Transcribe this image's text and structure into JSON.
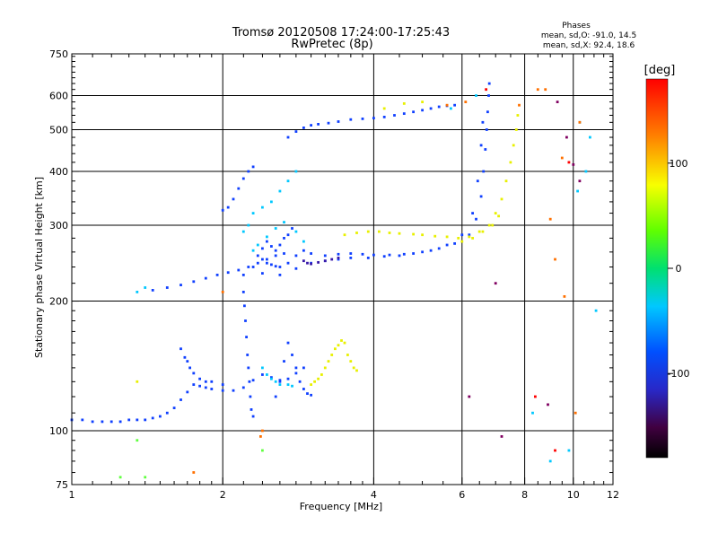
{
  "chart_data": {
    "type": "scatter",
    "title": "Tromsø 20120508 17:24:00-17:25:43",
    "subtitle": "RwPretec (8p)",
    "xlabel": "Frequency [MHz]",
    "ylabel": "Stationary phase Virtual Height [km]",
    "x_scale": "log",
    "y_scale": "log",
    "xlim": [
      1,
      12
    ],
    "ylim": [
      75,
      750
    ],
    "x_ticks": [
      "1",
      "2",
      "4",
      "6",
      "8",
      "10",
      "12"
    ],
    "y_ticks": [
      "75",
      "100",
      "200",
      "300",
      "400",
      "500",
      "600",
      "750"
    ],
    "grid": true,
    "phase_box": {
      "title": "Phases",
      "line1": "mean, sd,O: -91.0, 14.5",
      "line2": "mean, sd,X:  92.4, 18.6"
    },
    "colorbar": {
      "label": "[deg]",
      "range": [
        -180,
        180
      ],
      "ticks": [
        "100",
        "0",
        "-100"
      ],
      "colormap": "rainbow"
    },
    "series": [
      {
        "color_deg": -100,
        "color": "#1040ff",
        "points": [
          [
            1.0,
            106
          ],
          [
            1.05,
            106
          ],
          [
            1.1,
            105
          ],
          [
            1.15,
            105
          ],
          [
            1.2,
            105
          ],
          [
            1.25,
            105
          ],
          [
            1.3,
            106
          ],
          [
            1.35,
            106
          ],
          [
            1.4,
            106
          ],
          [
            1.45,
            107
          ],
          [
            1.5,
            108
          ],
          [
            1.55,
            110
          ],
          [
            1.6,
            113
          ],
          [
            1.65,
            118
          ],
          [
            1.7,
            123
          ],
          [
            1.75,
            128
          ],
          [
            1.8,
            127
          ],
          [
            1.85,
            126
          ],
          [
            1.9,
            125
          ],
          [
            2.0,
            124
          ],
          [
            2.1,
            124
          ],
          [
            2.2,
            126
          ],
          [
            2.3,
            131
          ],
          [
            2.4,
            135
          ],
          [
            2.5,
            133
          ],
          [
            2.6,
            131
          ],
          [
            2.7,
            132
          ],
          [
            2.8,
            136
          ],
          [
            2.9,
            140
          ],
          [
            1.65,
            155
          ],
          [
            1.68,
            148
          ],
          [
            1.7,
            145
          ],
          [
            1.72,
            140
          ],
          [
            1.75,
            136
          ],
          [
            1.8,
            132
          ],
          [
            1.85,
            130
          ],
          [
            1.9,
            130
          ],
          [
            2.0,
            128
          ],
          [
            1.45,
            212
          ],
          [
            1.55,
            215
          ],
          [
            1.65,
            218
          ],
          [
            1.75,
            222
          ],
          [
            1.85,
            226
          ],
          [
            1.95,
            230
          ],
          [
            2.05,
            233
          ],
          [
            2.15,
            236
          ],
          [
            2.25,
            240
          ],
          [
            2.35,
            245
          ],
          [
            2.45,
            250
          ],
          [
            2.55,
            255
          ],
          [
            2.65,
            258
          ],
          [
            2.0,
            325
          ],
          [
            2.05,
            330
          ],
          [
            2.1,
            345
          ],
          [
            2.15,
            365
          ],
          [
            2.2,
            385
          ],
          [
            2.25,
            400
          ],
          [
            2.3,
            410
          ],
          [
            2.2,
            230
          ],
          [
            2.2,
            210
          ],
          [
            2.21,
            195
          ],
          [
            2.22,
            180
          ],
          [
            2.23,
            165
          ],
          [
            2.24,
            150
          ],
          [
            2.25,
            140
          ],
          [
            2.26,
            130
          ],
          [
            2.27,
            120
          ],
          [
            2.28,
            112
          ],
          [
            2.3,
            108
          ],
          [
            2.4,
            250
          ],
          [
            2.45,
            245
          ],
          [
            2.5,
            243
          ],
          [
            2.55,
            241
          ],
          [
            2.6,
            240
          ],
          [
            2.7,
            245
          ],
          [
            2.8,
            255
          ],
          [
            2.9,
            262
          ],
          [
            3.0,
            258
          ],
          [
            3.2,
            255
          ],
          [
            3.4,
            257
          ],
          [
            3.6,
            258
          ],
          [
            3.8,
            257
          ],
          [
            4.0,
            256
          ],
          [
            4.3,
            256
          ],
          [
            4.6,
            257
          ],
          [
            5.0,
            260
          ],
          [
            5.4,
            265
          ],
          [
            5.8,
            272
          ],
          [
            6.2,
            285
          ],
          [
            6.4,
            310
          ],
          [
            6.55,
            350
          ],
          [
            6.62,
            400
          ],
          [
            6.68,
            450
          ],
          [
            6.72,
            500
          ],
          [
            6.75,
            550
          ],
          [
            6.78,
            600
          ],
          [
            6.8,
            640
          ],
          [
            2.3,
            240
          ],
          [
            2.4,
            232
          ],
          [
            2.6,
            230
          ],
          [
            2.8,
            238
          ],
          [
            3.0,
            245
          ],
          [
            3.2,
            248
          ],
          [
            3.4,
            250
          ],
          [
            3.6,
            252
          ],
          [
            3.9,
            252
          ],
          [
            4.2,
            254
          ],
          [
            4.5,
            255
          ],
          [
            4.8,
            258
          ],
          [
            5.2,
            262
          ],
          [
            5.6,
            270
          ],
          [
            6.0,
            285
          ],
          [
            6.3,
            320
          ],
          [
            6.45,
            380
          ],
          [
            6.55,
            460
          ],
          [
            6.6,
            520
          ],
          [
            2.7,
            480
          ],
          [
            2.8,
            495
          ],
          [
            2.9,
            505
          ],
          [
            3.0,
            512
          ],
          [
            3.1,
            515
          ],
          [
            3.25,
            518
          ],
          [
            3.4,
            522
          ],
          [
            3.6,
            528
          ],
          [
            3.8,
            530
          ],
          [
            4.0,
            532
          ],
          [
            4.2,
            535
          ],
          [
            4.4,
            540
          ],
          [
            4.6,
            545
          ],
          [
            4.8,
            550
          ],
          [
            5.0,
            555
          ],
          [
            5.2,
            560
          ],
          [
            5.4,
            565
          ],
          [
            5.6,
            568
          ],
          [
            5.8,
            570
          ],
          [
            2.55,
            120
          ],
          [
            2.6,
            130
          ],
          [
            2.65,
            145
          ],
          [
            2.7,
            160
          ],
          [
            2.75,
            150
          ],
          [
            2.8,
            140
          ],
          [
            2.85,
            130
          ],
          [
            2.9,
            125
          ],
          [
            2.95,
            122
          ],
          [
            3.0,
            121
          ],
          [
            2.35,
            255
          ],
          [
            2.4,
            265
          ],
          [
            2.45,
            275
          ],
          [
            2.5,
            268
          ],
          [
            2.55,
            262
          ],
          [
            2.6,
            270
          ],
          [
            2.65,
            280
          ],
          [
            2.7,
            285
          ],
          [
            2.75,
            295
          ]
        ]
      },
      {
        "color_deg": -135,
        "color": "#3818a8",
        "points": [
          [
            2.9,
            248
          ],
          [
            2.95,
            245
          ],
          [
            3.0,
            244
          ],
          [
            3.1,
            246
          ],
          [
            3.2,
            248
          ],
          [
            3.3,
            250
          ],
          [
            3.4,
            252
          ]
        ]
      },
      {
        "color_deg": -45,
        "color": "#00c8ff",
        "points": [
          [
            2.4,
            140
          ],
          [
            2.45,
            135
          ],
          [
            2.5,
            132
          ],
          [
            2.55,
            130
          ],
          [
            2.6,
            128
          ],
          [
            2.7,
            128
          ],
          [
            2.75,
            127
          ],
          [
            2.3,
            262
          ],
          [
            2.35,
            270
          ],
          [
            2.45,
            282
          ],
          [
            2.55,
            295
          ],
          [
            2.65,
            305
          ],
          [
            2.8,
            290
          ],
          [
            2.9,
            275
          ],
          [
            2.2,
            290
          ],
          [
            2.25,
            300
          ],
          [
            2.3,
            320
          ],
          [
            2.4,
            330
          ],
          [
            2.5,
            340
          ],
          [
            2.6,
            360
          ],
          [
            2.7,
            380
          ],
          [
            2.8,
            400
          ],
          [
            5.7,
            560
          ],
          [
            6.4,
            600
          ],
          [
            9.8,
            90
          ],
          [
            10.3,
            520
          ],
          [
            10.8,
            480
          ],
          [
            11.1,
            190
          ],
          [
            8.3,
            110
          ],
          [
            9.0,
            85
          ],
          [
            10.2,
            360
          ],
          [
            10.6,
            400
          ],
          [
            1.35,
            210
          ],
          [
            1.4,
            215
          ]
        ]
      },
      {
        "color_deg": 100,
        "color": "#e8f000",
        "points": [
          [
            3.2,
            140
          ],
          [
            3.25,
            145
          ],
          [
            3.3,
            150
          ],
          [
            3.35,
            155
          ],
          [
            3.4,
            158
          ],
          [
            3.45,
            162
          ],
          [
            3.5,
            160
          ],
          [
            3.55,
            150
          ],
          [
            3.6,
            145
          ],
          [
            3.65,
            140
          ],
          [
            3.7,
            138
          ],
          [
            3.0,
            128
          ],
          [
            3.05,
            130
          ],
          [
            3.1,
            132
          ],
          [
            3.15,
            135
          ],
          [
            3.5,
            285
          ],
          [
            3.7,
            288
          ],
          [
            3.9,
            290
          ],
          [
            4.1,
            290
          ],
          [
            4.3,
            288
          ],
          [
            4.5,
            287
          ],
          [
            4.8,
            286
          ],
          [
            5.0,
            285
          ],
          [
            5.3,
            283
          ],
          [
            5.6,
            282
          ],
          [
            5.9,
            280
          ],
          [
            6.2,
            282
          ],
          [
            6.5,
            290
          ],
          [
            6.8,
            300
          ],
          [
            7.0,
            320
          ],
          [
            7.2,
            345
          ],
          [
            7.35,
            380
          ],
          [
            7.5,
            420
          ],
          [
            7.6,
            460
          ],
          [
            7.7,
            500
          ],
          [
            7.75,
            540
          ],
          [
            6.0,
            275
          ],
          [
            6.3,
            280
          ],
          [
            6.6,
            290
          ],
          [
            6.9,
            300
          ],
          [
            7.1,
            315
          ],
          [
            4.2,
            560
          ],
          [
            4.6,
            575
          ],
          [
            5.0,
            580
          ],
          [
            1.35,
            130
          ]
        ]
      },
      {
        "color_deg": 145,
        "color": "#ff7000",
        "points": [
          [
            2.4,
            100
          ],
          [
            2.38,
            97
          ],
          [
            5.6,
            570
          ],
          [
            7.8,
            570
          ],
          [
            8.5,
            620
          ],
          [
            9.0,
            310
          ],
          [
            9.2,
            250
          ],
          [
            9.5,
            430
          ],
          [
            10.1,
            110
          ],
          [
            10.3,
            520
          ],
          [
            1.75,
            80
          ],
          [
            2.0,
            210
          ],
          [
            6.1,
            580
          ],
          [
            8.8,
            620
          ],
          [
            9.6,
            205
          ]
        ]
      },
      {
        "color_deg": -160,
        "color": "#800060",
        "points": [
          [
            9.7,
            480
          ],
          [
            10.0,
            415
          ],
          [
            7.2,
            97
          ],
          [
            8.9,
            115
          ],
          [
            9.3,
            580
          ],
          [
            6.2,
            120
          ],
          [
            7.0,
            220
          ],
          [
            10.3,
            380
          ]
        ]
      },
      {
        "color_deg": 60,
        "color": "#60ff40",
        "points": [
          [
            1.25,
            78
          ],
          [
            1.4,
            78
          ],
          [
            1.35,
            95
          ],
          [
            2.4,
            90
          ]
        ]
      },
      {
        "color_deg": 170,
        "color": "#ff0000",
        "points": [
          [
            8.4,
            120
          ],
          [
            9.8,
            420
          ],
          [
            6.7,
            620
          ],
          [
            9.2,
            90
          ]
        ]
      }
    ]
  }
}
